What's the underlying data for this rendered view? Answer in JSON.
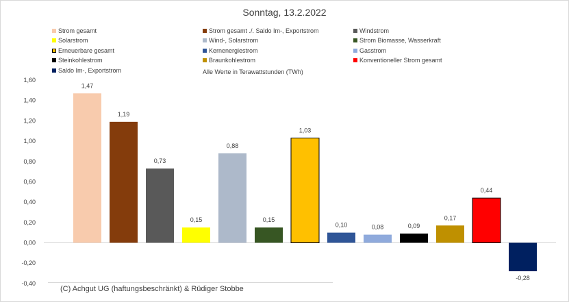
{
  "chart_data": {
    "type": "bar",
    "title": "Sonntag, 13.2.2022",
    "note": "Alle Werte in Terawattstunden (TWh)",
    "footer": "(C) Achgut UG (haftungsbeschränkt) & Rüdiger Stobbe",
    "ylim": [
      -0.3,
      1.6
    ],
    "yticks": [
      "1,60",
      "1,40",
      "1,20",
      "1,00",
      "0,80",
      "0,60",
      "0,40",
      "0,20",
      "0,00",
      "-0,20",
      "-0,40"
    ],
    "grid": false,
    "legend_position": "top",
    "categories": [
      "Strom gesamt",
      "Strom gesamt ./. Saldo Im-, Exportstrom",
      "Windstrom",
      "Solarstrom",
      "Wind-, Solarstrom",
      "Strom Biomasse, Wasserkraft",
      "Erneuerbare gesamt",
      "Kernenergiestrom",
      "Gasstrom",
      "Steinkohlestrom",
      "Braunkohlestrom",
      "Konventioneller Strom gesamt",
      "Saldo Im-, Exportstrom"
    ],
    "values": [
      1.47,
      1.19,
      0.73,
      0.15,
      0.88,
      0.15,
      1.03,
      0.1,
      0.08,
      0.09,
      0.17,
      0.44,
      -0.28
    ],
    "value_labels": [
      "1,47",
      "1,19",
      "0,73",
      "0,15",
      "0,88",
      "0,15",
      "1,03",
      "0,10",
      "0,08",
      "0,09",
      "0,17",
      "0,44",
      "-0,28"
    ],
    "colors": [
      "#f8cbad",
      "#843c0c",
      "#595959",
      "#ffff00",
      "#adb9ca",
      "#375623",
      "#ffc000",
      "#2f5597",
      "#8faadc",
      "#000000",
      "#bf9000",
      "#ff0000",
      "#002060"
    ]
  }
}
